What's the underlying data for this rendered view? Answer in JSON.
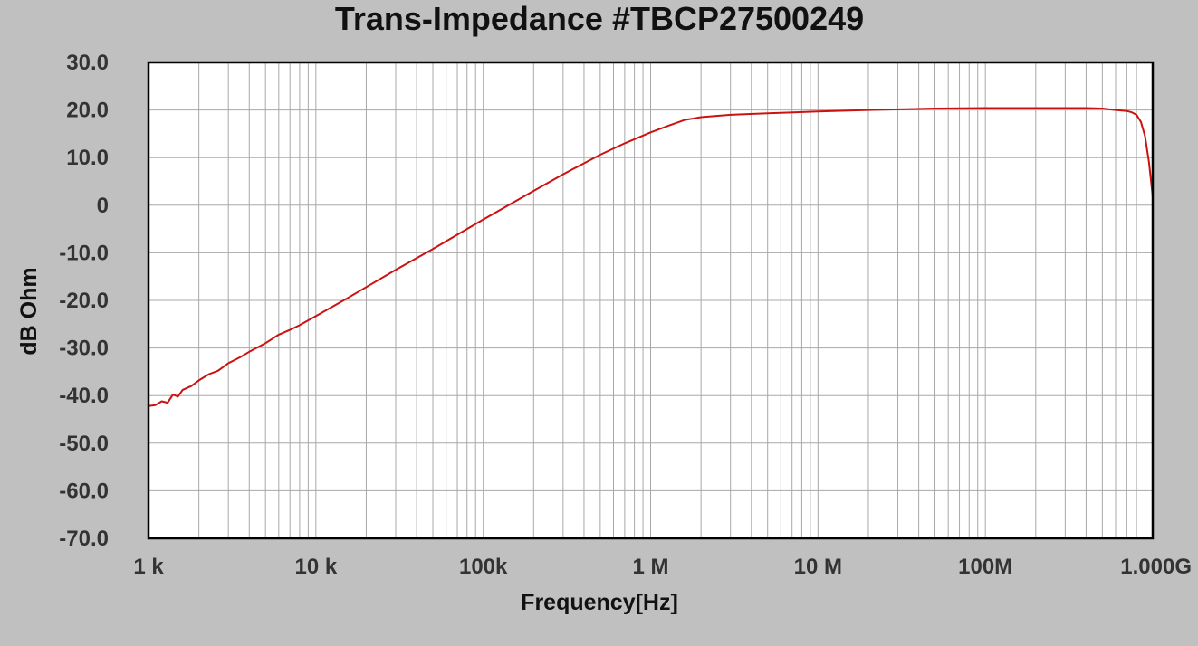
{
  "chart_data": {
    "type": "line",
    "title": "Trans-Impedance   #TBCP27500249",
    "xlabel": "Frequency[Hz]",
    "ylabel": "dB Ohm",
    "x_scale": "log",
    "xlim": [
      1000,
      1000000000
    ],
    "ylim": [
      -70,
      30
    ],
    "grid": true,
    "x_ticks": [
      {
        "value": 1000,
        "label": "1  k"
      },
      {
        "value": 10000,
        "label": "10 k"
      },
      {
        "value": 100000,
        "label": "100k"
      },
      {
        "value": 1000000,
        "label": "1  M"
      },
      {
        "value": 10000000,
        "label": "10 M"
      },
      {
        "value": 100000000,
        "label": "100M"
      },
      {
        "value": 1000000000,
        "label": "1.000G"
      }
    ],
    "y_ticks": [
      {
        "value": 30,
        "label": "30.0"
      },
      {
        "value": 20,
        "label": "20.0"
      },
      {
        "value": 10,
        "label": "10.0"
      },
      {
        "value": 0,
        "label": "0"
      },
      {
        "value": -10,
        "label": "-10.0"
      },
      {
        "value": -20,
        "label": "-20.0"
      },
      {
        "value": -30,
        "label": "-30.0"
      },
      {
        "value": -40,
        "label": "-40.0"
      },
      {
        "value": -50,
        "label": "-50.0"
      },
      {
        "value": -60,
        "label": "-60.0"
      },
      {
        "value": -70,
        "label": "-70.0"
      }
    ],
    "series": [
      {
        "color": "#cc1111",
        "x": [
          1000,
          1100,
          1200,
          1300,
          1400,
          1500,
          1600,
          1800,
          2000,
          2300,
          2600,
          3000,
          3500,
          4000,
          5000,
          6000,
          7000,
          8000,
          10000,
          15000,
          20000,
          30000,
          50000,
          100000,
          200000,
          300000,
          500000,
          700000,
          1000000,
          1300000,
          1600000,
          2000000,
          3000000,
          5000000,
          10000000,
          20000000,
          50000000,
          100000000,
          200000000,
          400000000,
          500000000,
          600000000,
          700000000,
          750000000,
          800000000,
          850000000,
          900000000,
          950000000,
          1000000000
        ],
        "y": [
          -42.2,
          -42.0,
          -41.2,
          -41.5,
          -39.8,
          -40.2,
          -38.8,
          -38.0,
          -36.8,
          -35.5,
          -34.8,
          -33.2,
          -32.0,
          -30.8,
          -29.0,
          -27.2,
          -26.2,
          -25.2,
          -23.3,
          -19.8,
          -17.2,
          -13.6,
          -9.2,
          -3.0,
          3.0,
          6.5,
          10.6,
          13.0,
          15.3,
          16.8,
          17.9,
          18.5,
          19.0,
          19.3,
          19.7,
          20.0,
          20.3,
          20.4,
          20.4,
          20.4,
          20.3,
          20.0,
          19.8,
          19.5,
          19.0,
          17.5,
          14.5,
          9.0,
          1.8
        ]
      }
    ]
  }
}
